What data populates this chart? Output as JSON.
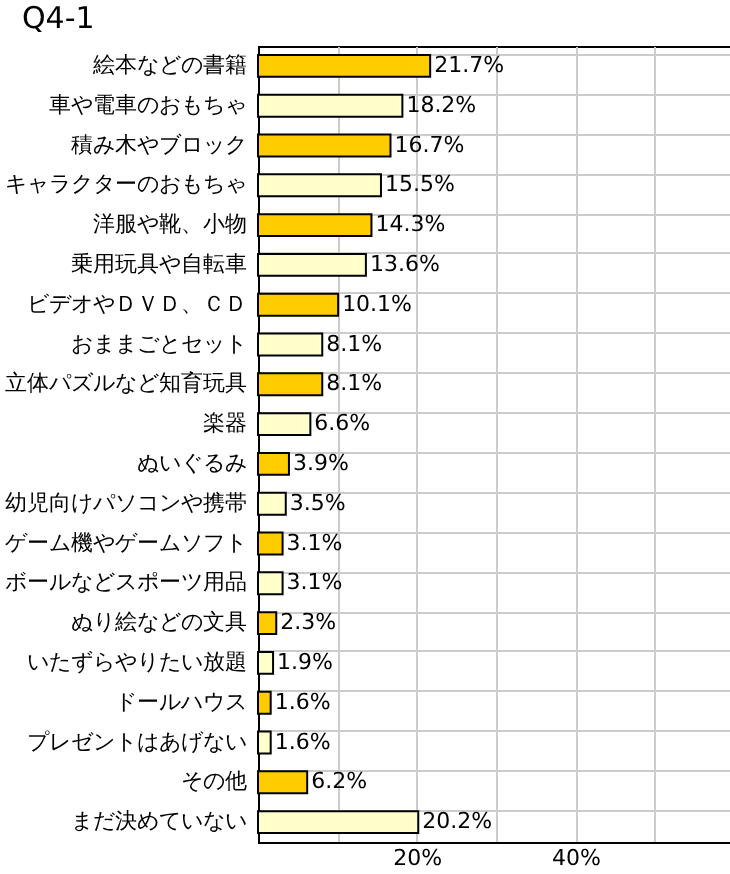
{
  "chart_data": {
    "type": "bar",
    "orientation": "horizontal",
    "title": "Q4-1",
    "categories": [
      "絵本などの書籍",
      "車や電車のおもちゃ",
      "積み木やブロック",
      "キャラクターのおもちゃ",
      "洋服や靴、小物",
      "乗用玩具や自転車",
      "ビデオやＤＶＤ、ＣＤ",
      "おままごとセット",
      "立体パズルなど知育玩具",
      "楽器",
      "ぬいぐるみ",
      "幼児向けパソコンや携帯",
      "ゲーム機やゲームソフト",
      "ボールなどスポーツ用品",
      "ぬり絵などの文具",
      "いたずらやりたい放題",
      "ドールハウス",
      "プレゼントはあげない",
      "その他",
      "まだ決めていない"
    ],
    "values": [
      21.7,
      18.2,
      16.7,
      15.5,
      14.3,
      13.6,
      10.1,
      8.1,
      8.1,
      6.6,
      3.9,
      3.5,
      3.1,
      3.1,
      2.3,
      1.9,
      1.6,
      1.6,
      6.2,
      20.2
    ],
    "value_labels": [
      "21.7%",
      "18.2%",
      "16.7%",
      "15.5%",
      "14.3%",
      "13.6%",
      "10.1%",
      "8.1%",
      "8.1%",
      "6.6%",
      "3.9%",
      "3.5%",
      "3.1%",
      "3.1%",
      "2.3%",
      "1.9%",
      "1.6%",
      "1.6%",
      "6.2%",
      "20.2%"
    ],
    "colors": [
      "#ffcc00",
      "#ffffcc",
      "#ffcc00",
      "#ffffcc",
      "#ffcc00",
      "#ffffcc",
      "#ffcc00",
      "#ffffcc",
      "#ffcc00",
      "#ffffcc",
      "#ffcc00",
      "#ffffcc",
      "#ffcc00",
      "#ffffcc",
      "#ffcc00",
      "#ffffcc",
      "#ffcc00",
      "#ffffcc",
      "#ffcc00",
      "#ffffcc"
    ],
    "xlim": [
      0,
      60
    ],
    "xticks": [
      {
        "value": 10,
        "label": null
      },
      {
        "value": 20,
        "label": "20%"
      },
      {
        "value": 30,
        "label": null
      },
      {
        "value": 40,
        "label": "40%"
      },
      {
        "value": 50,
        "label": null
      }
    ],
    "grid": true
  }
}
